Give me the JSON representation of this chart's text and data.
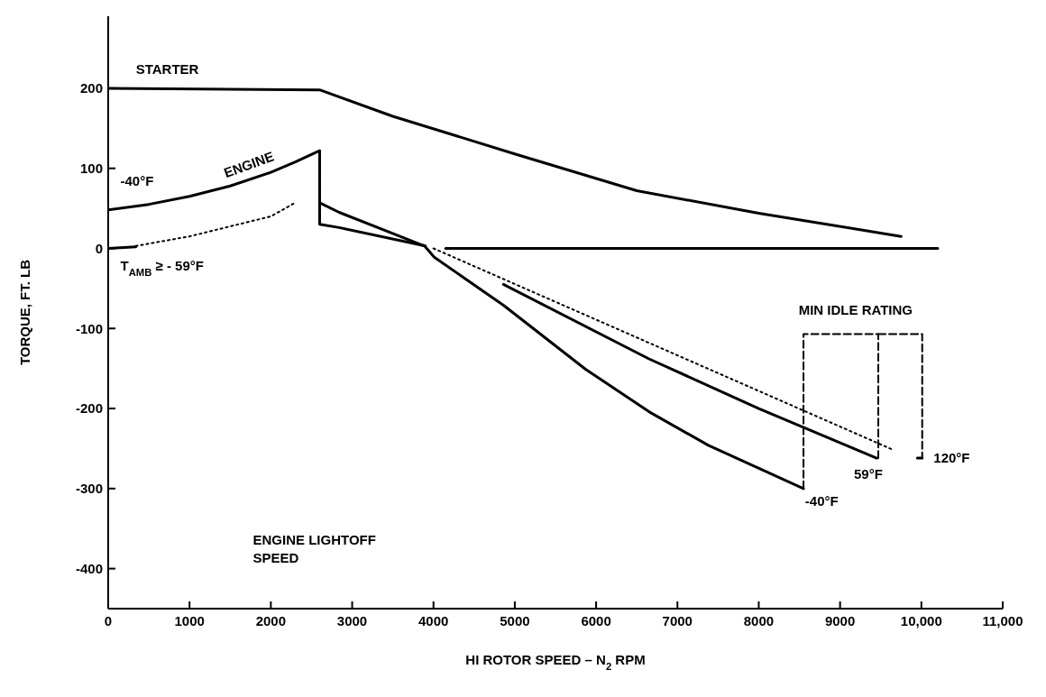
{
  "chart_data": {
    "type": "line",
    "xlabel": "HI ROTOR SPEED – N$_{2}$ RPM",
    "ylabel": "TORQUE, FT. LB",
    "xlim": [
      0,
      11000
    ],
    "ylim": [
      -450,
      290
    ],
    "xticks": [
      0,
      1000,
      2000,
      3000,
      4000,
      5000,
      6000,
      7000,
      8000,
      9000,
      {
        "value": 10000,
        "label": "10,000"
      },
      {
        "value": 11000,
        "label": "11,000"
      }
    ],
    "yticks": [
      -400,
      -300,
      -200,
      -100,
      0,
      100,
      200
    ],
    "grid": false,
    "marker": "none",
    "series": [
      {
        "color": "#000000",
        "x": [
          0,
          2600,
          3500,
          5000,
          6500,
          8000,
          9750
        ],
        "values": [
          200,
          198,
          165,
          118,
          72,
          44,
          15
        ]
      },
      {
        "color": "#000000",
        "x": [
          0,
          500,
          1000,
          1500,
          2000,
          2300,
          2600,
          2600,
          2840,
          3890,
          4010,
          4860,
          5870,
          6650,
          7380,
          8550
        ],
        "values": [
          48,
          55,
          65,
          78,
          95,
          108,
          122,
          57,
          45,
          3,
          -11,
          -71,
          -151,
          -204,
          -246,
          -300
        ]
      },
      {
        "color": "#000000",
        "x": [
          2600,
          2600,
          2840,
          3900
        ],
        "values": [
          57,
          30,
          26,
          3
        ]
      },
      {
        "color": "#000000",
        "x": [
          0,
          340
        ],
        "values": [
          0,
          2
        ]
      },
      {
        "color": "#000000",
        "line_style": "dotted",
        "x": [
          340,
          1000,
          2000,
          2300
        ],
        "values": [
          3,
          15,
          40,
          57
        ]
      },
      {
        "color": "#000000",
        "x": [
          4150,
          10200
        ],
        "values": [
          0,
          0
        ]
      },
      {
        "color": "#000000",
        "x": [
          4860,
          6650,
          8000,
          9450
        ],
        "values": [
          -45,
          -138,
          -200,
          -262
        ]
      },
      {
        "color": "#000000",
        "line_style": "dotted",
        "x": [
          4000,
          9660
        ],
        "values": [
          0,
          -252
        ]
      },
      {
        "color": "#000000",
        "line_style": "dashed",
        "x": [
          8550,
          8550,
          9470,
          9470
        ],
        "values": [
          -300,
          -107,
          -107,
          -262
        ]
      },
      {
        "color": "#000000",
        "line_style": "dashed",
        "x": [
          9470,
          10010,
          10010
        ],
        "values": [
          -107,
          -107,
          -262
        ]
      },
      {
        "color": "#000000",
        "x": [
          10010,
          9950
        ],
        "values": [
          -262,
          -262
        ]
      }
    ],
    "annotations": [
      "STARTER",
      "ENGINE",
      "-40°F",
      "T$_{AMB}$ ≥ - 59°F",
      "ENGINE LIGHTOFF SPEED",
      "MIN IDLE RATING",
      "-40°F",
      "59°F",
      "120°F"
    ]
  }
}
